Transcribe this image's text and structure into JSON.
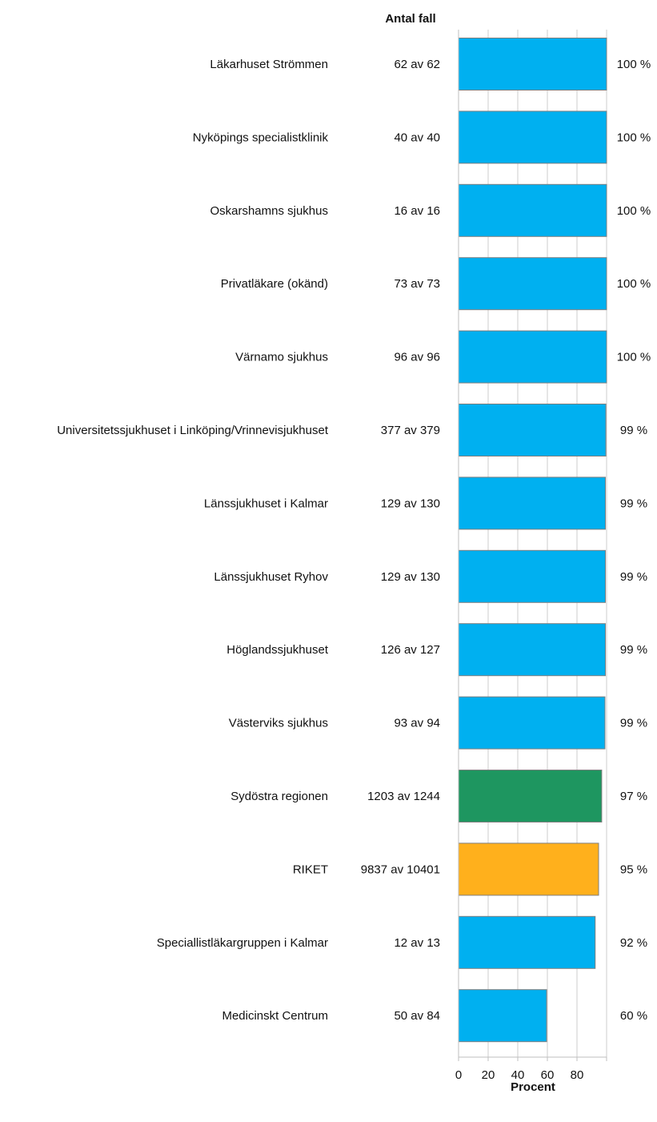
{
  "chart_data": {
    "type": "bar",
    "orientation": "horizontal",
    "count_header": "Antal fall",
    "xlabel": "Procent",
    "xlim": [
      0,
      100
    ],
    "x_ticks": [
      "0",
      "20",
      "40",
      "60",
      "80"
    ],
    "grid": true,
    "categories": [
      "Läkarhuset Strömmen",
      "Nyköpings specialistklinik",
      "Oskarshamns sjukhus",
      "Privatläkare (okänd)",
      "Värnamo sjukhus",
      "Universitetssjukhuset i Linköping/Vrinnevisjukhuset",
      "Länssjukhuset i Kalmar",
      "Länssjukhuset Ryhov",
      "Höglandssjukhuset",
      "Västerviks sjukhus",
      "Sydöstra regionen",
      "RIKET",
      "Speciallistläkargruppen i Kalmar",
      "Medicinskt Centrum"
    ],
    "counts": [
      "62 av 62",
      "40 av 40",
      "16 av 16",
      "73 av 73",
      "96 av 96",
      "377 av 379",
      "129 av 130",
      "129 av 130",
      "126 av 127",
      "93 av 94",
      "1203 av 1244",
      "9837 av 10401",
      "12 av 13",
      "50 av 84"
    ],
    "values": [
      100,
      100,
      100,
      100,
      100,
      99.5,
      99.2,
      99.2,
      99.2,
      98.9,
      96.7,
      94.6,
      92.3,
      59.5
    ],
    "value_labels": [
      "100 %",
      "100 %",
      "100 %",
      "100 %",
      "100 %",
      "99 %",
      "99 %",
      "99 %",
      "99 %",
      "99 %",
      "97 %",
      "95 %",
      "92 %",
      "60 %"
    ],
    "bar_kinds": [
      "unit",
      "unit",
      "unit",
      "unit",
      "unit",
      "unit",
      "unit",
      "unit",
      "unit",
      "unit",
      "region",
      "nation",
      "unit",
      "unit"
    ],
    "colors": {
      "unit": "#00b0f0",
      "region": "#1e9660",
      "nation": "#ffb01c",
      "bar_outline": "#7f7f7f",
      "grid": "#cccccc",
      "axis": "#bfbfbf"
    }
  }
}
